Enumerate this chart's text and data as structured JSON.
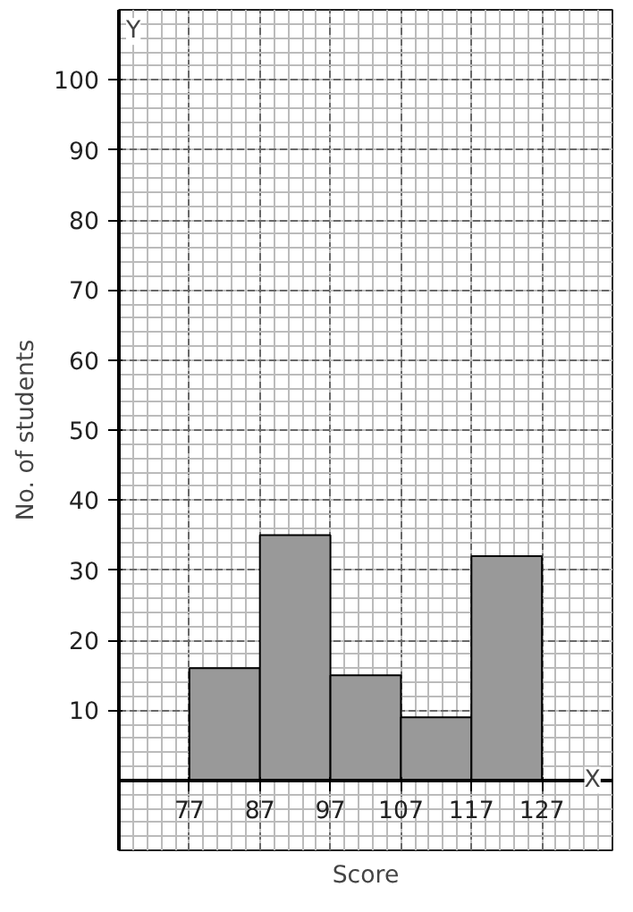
{
  "chart_data": {
    "type": "histogram",
    "xlabel": "Score",
    "ylabel": "No. of students",
    "bins": [
      77,
      87,
      97,
      107,
      117,
      127
    ],
    "values": [
      16,
      35,
      15,
      9,
      32
    ],
    "color": "#999999",
    "xlim": [
      67,
      137
    ],
    "ylim": [
      -10,
      110
    ],
    "xticks": [
      77,
      87,
      97,
      107,
      117,
      127
    ],
    "yticks": [
      10,
      20,
      30,
      40,
      50,
      60,
      70,
      80,
      90,
      100
    ],
    "grid": true,
    "annotations": [
      "X",
      "Y"
    ]
  }
}
